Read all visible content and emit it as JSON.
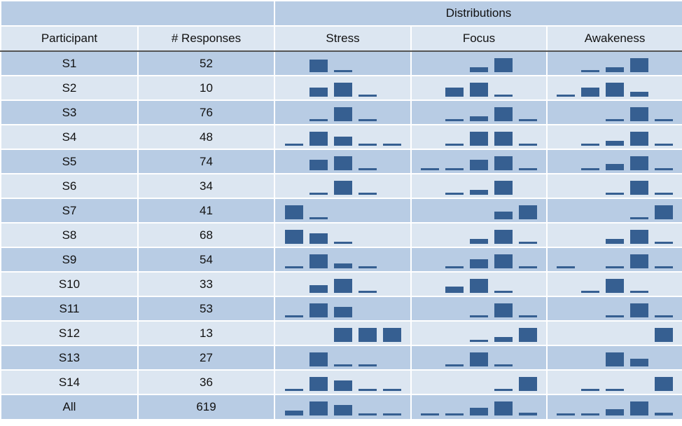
{
  "header": {
    "distributions_label": "Distributions",
    "participant_label": "Participant",
    "responses_label": "# Responses",
    "stress_label": "Stress",
    "focus_label": "Focus",
    "awakeness_label": "Awakeness"
  },
  "colors": {
    "bar": "#365f91",
    "row_dark": "#b8cce4",
    "row_light": "#dce6f1"
  },
  "chart_data": {
    "type": "table",
    "columns": [
      "Participant",
      "# Responses",
      "Stress",
      "Focus",
      "Awakeness"
    ],
    "bins_per_distribution": 5,
    "rows": [
      {
        "participant": "S1",
        "responses": "52",
        "stress": [
          0,
          0.8,
          0.1,
          0,
          0
        ],
        "focus": [
          0,
          0,
          0.3,
          0.9,
          0
        ],
        "awakeness": [
          0,
          0.1,
          0.3,
          0.9,
          0
        ]
      },
      {
        "participant": "S2",
        "responses": "10",
        "stress": [
          0,
          0.6,
          0.9,
          0.1,
          0
        ],
        "focus": [
          0,
          0.6,
          0.9,
          0.1,
          0
        ],
        "awakeness": [
          0.1,
          0.6,
          0.9,
          0.3,
          0
        ]
      },
      {
        "participant": "S3",
        "responses": "76",
        "stress": [
          0,
          0.1,
          0.9,
          0.1,
          0
        ],
        "focus": [
          0,
          0.1,
          0.3,
          0.9,
          0.1
        ],
        "awakeness": [
          0,
          0,
          0.1,
          0.9,
          0.1
        ]
      },
      {
        "participant": "S4",
        "responses": "48",
        "stress": [
          0.1,
          0.9,
          0.6,
          0.1,
          0.1
        ],
        "focus": [
          0,
          0.1,
          0.9,
          0.9,
          0.1
        ],
        "awakeness": [
          0,
          0.1,
          0.3,
          0.9,
          0.1
        ]
      },
      {
        "participant": "S5",
        "responses": "74",
        "stress": [
          0,
          0.7,
          0.9,
          0.1,
          0
        ],
        "focus": [
          0.1,
          0.1,
          0.7,
          0.9,
          0.1
        ],
        "awakeness": [
          0,
          0.1,
          0.4,
          0.9,
          0.1
        ]
      },
      {
        "participant": "S6",
        "responses": "34",
        "stress": [
          0,
          0.1,
          0.9,
          0.1,
          0
        ],
        "focus": [
          0,
          0.1,
          0.3,
          0.9,
          0
        ],
        "awakeness": [
          0,
          0,
          0.1,
          0.9,
          0.1
        ]
      },
      {
        "participant": "S7",
        "responses": "41",
        "stress": [
          0.9,
          0.1,
          0,
          0,
          0
        ],
        "focus": [
          0,
          0,
          0,
          0.5,
          0.9
        ],
        "awakeness": [
          0,
          0,
          0,
          0.1,
          0.9
        ]
      },
      {
        "participant": "S8",
        "responses": "68",
        "stress": [
          0.9,
          0.7,
          0.1,
          0,
          0
        ],
        "focus": [
          0,
          0,
          0.3,
          0.9,
          0.1
        ],
        "awakeness": [
          0,
          0,
          0.3,
          0.9,
          0.1
        ]
      },
      {
        "participant": "S9",
        "responses": "54",
        "stress": [
          0.1,
          0.9,
          0.3,
          0.1,
          0
        ],
        "focus": [
          0,
          0.1,
          0.6,
          0.9,
          0.1
        ],
        "awakeness": [
          0.1,
          0,
          0.1,
          0.9,
          0.1
        ]
      },
      {
        "participant": "S10",
        "responses": "33",
        "stress": [
          0,
          0.5,
          0.9,
          0.1,
          0
        ],
        "focus": [
          0,
          0.4,
          0.9,
          0.1,
          0
        ],
        "awakeness": [
          0,
          0.1,
          0.9,
          0.1,
          0
        ]
      },
      {
        "participant": "S11",
        "responses": "53",
        "stress": [
          0.1,
          0.9,
          0.7,
          0,
          0
        ],
        "focus": [
          0,
          0,
          0.1,
          0.9,
          0.1
        ],
        "awakeness": [
          0,
          0,
          0.1,
          0.9,
          0.1
        ]
      },
      {
        "participant": "S12",
        "responses": "13",
        "stress": [
          0,
          0,
          0.9,
          0.9,
          0.9
        ],
        "focus": [
          0,
          0,
          0.1,
          0.3,
          0.9
        ],
        "awakeness": [
          0,
          0,
          0,
          0,
          0.9
        ]
      },
      {
        "participant": "S13",
        "responses": "27",
        "stress": [
          0,
          0.9,
          0.1,
          0.1,
          0
        ],
        "focus": [
          0,
          0.1,
          0.9,
          0.1,
          0
        ],
        "awakeness": [
          0,
          0,
          0.9,
          0.5,
          0
        ]
      },
      {
        "participant": "S14",
        "responses": "36",
        "stress": [
          0.1,
          0.9,
          0.7,
          0.1,
          0.1
        ],
        "focus": [
          0,
          0,
          0,
          0.1,
          0.9
        ],
        "awakeness": [
          0,
          0.1,
          0.1,
          0,
          0.9
        ]
      },
      {
        "participant": "All",
        "responses": "619",
        "stress": [
          0.3,
          0.9,
          0.7,
          0.1,
          0.1
        ],
        "focus": [
          0.1,
          0.1,
          0.5,
          0.9,
          0.2
        ],
        "awakeness": [
          0.1,
          0.1,
          0.4,
          0.9,
          0.2
        ]
      }
    ]
  }
}
